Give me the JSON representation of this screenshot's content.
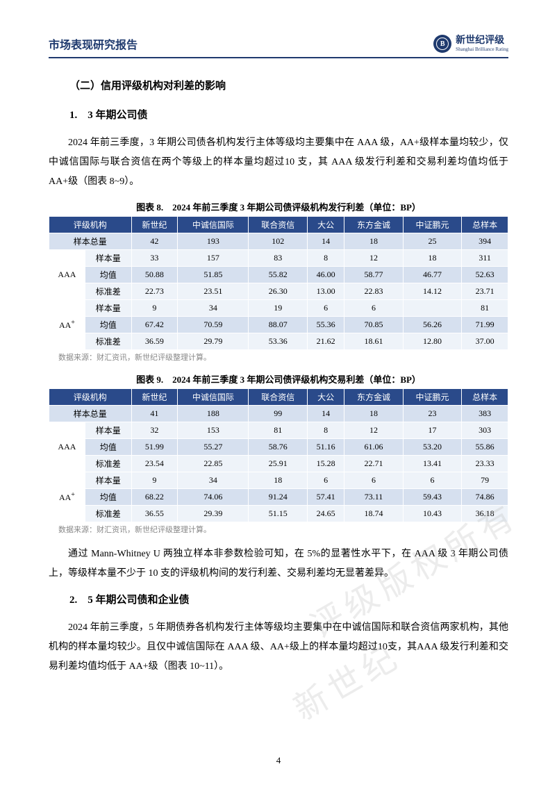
{
  "header": {
    "title": "市场表现研究报告",
    "logo_letter": "B",
    "logo_cn": "新世纪评级",
    "logo_en": "Shanghai Brilliance Rating"
  },
  "section2": {
    "heading": "（二）信用评级机构对利差的影响",
    "sub1_heading": "1.　3 年期公司债",
    "sub1_para": "2024 年前三季度，3 年期公司债各机构发行主体等级均主要集中在 AAA 级，AA+级样本量均较少，仅中诚信国际与联合资信在两个等级上的样本量均超过10 支，其 AAA 级发行利差和交易利差均值均低于 AA+级（图表 8~9）。",
    "sub2_heading": "2.　5 年期公司债和企业债",
    "sub2_para": "2024 年前三季度，5 年期债券各机构发行主体等级均主要集中在中诚信国际和联合资信两家机构，其他机构的样本量均较少。且仅中诚信国际在 AAA 级、AA+级上的样本量均超过10支，其AAA 级发行利差和交易利差均值均低于 AA+级（图表 10~11）。",
    "mid_para": "通过 Mann-Whitney U 两独立样本非参数检验可知，在 5%的显著性水平下，在 AAA 级 3 年期公司债上，等级样本量不少于 10 支的评级机构间的发行利差、交易利差均无显著差异。"
  },
  "table8": {
    "caption": "图表 8.　2024 年前三季度 3 年期公司债评级机构发行利差（单位：BP）",
    "headers": [
      "评级机构",
      "新世纪",
      "中诚信国际",
      "联合资信",
      "大公",
      "东方金诚",
      "中证鹏元",
      "总样本"
    ],
    "total_label": "样本总量",
    "total_row": [
      "42",
      "193",
      "102",
      "14",
      "18",
      "25",
      "394"
    ],
    "row_labels": [
      "样本量",
      "均值",
      "标准差"
    ],
    "grades": [
      "AAA",
      "AA+"
    ],
    "aaa": [
      [
        "33",
        "157",
        "83",
        "8",
        "12",
        "18",
        "311"
      ],
      [
        "50.88",
        "51.85",
        "55.82",
        "46.00",
        "58.77",
        "46.77",
        "52.63"
      ],
      [
        "22.73",
        "23.51",
        "26.30",
        "13.00",
        "22.83",
        "14.12",
        "23.71"
      ]
    ],
    "aap": [
      [
        "9",
        "34",
        "19",
        "6",
        "6",
        "",
        "81"
      ],
      [
        "67.42",
        "70.59",
        "88.07",
        "55.36",
        "70.85",
        "56.26",
        "71.99"
      ],
      [
        "36.59",
        "29.79",
        "53.36",
        "21.62",
        "18.61",
        "12.80",
        "37.00"
      ]
    ],
    "source": "数据来源：财汇资讯，新世纪评级整理计算。"
  },
  "table9": {
    "caption": "图表 9.　2024 年前三季度 3 年期公司债评级机构交易利差（单位：BP）",
    "headers": [
      "评级机构",
      "新世纪",
      "中诚信国际",
      "联合资信",
      "大公",
      "东方金诚",
      "中证鹏元",
      "总样本"
    ],
    "total_label": "样本总量",
    "total_row": [
      "41",
      "188",
      "99",
      "14",
      "18",
      "23",
      "383"
    ],
    "row_labels": [
      "样本量",
      "均值",
      "标准差"
    ],
    "grades": [
      "AAA",
      "AA+"
    ],
    "aaa": [
      [
        "32",
        "153",
        "81",
        "8",
        "12",
        "17",
        "303"
      ],
      [
        "51.99",
        "55.27",
        "58.76",
        "51.16",
        "61.06",
        "53.20",
        "55.86"
      ],
      [
        "23.54",
        "22.85",
        "25.91",
        "15.28",
        "22.71",
        "13.41",
        "23.33"
      ]
    ],
    "aap": [
      [
        "9",
        "34",
        "18",
        "6",
        "6",
        "6",
        "79"
      ],
      [
        "68.22",
        "74.06",
        "91.24",
        "57.41",
        "73.11",
        "59.43",
        "74.86"
      ],
      [
        "36.55",
        "29.39",
        "51.15",
        "24.65",
        "18.74",
        "10.43",
        "36.18"
      ]
    ],
    "source": "数据来源：财汇资讯，新世纪评级整理计算。"
  },
  "watermark": {
    "t1": "评级版权所有",
    "t2": "新世纪"
  },
  "page_number": "4"
}
